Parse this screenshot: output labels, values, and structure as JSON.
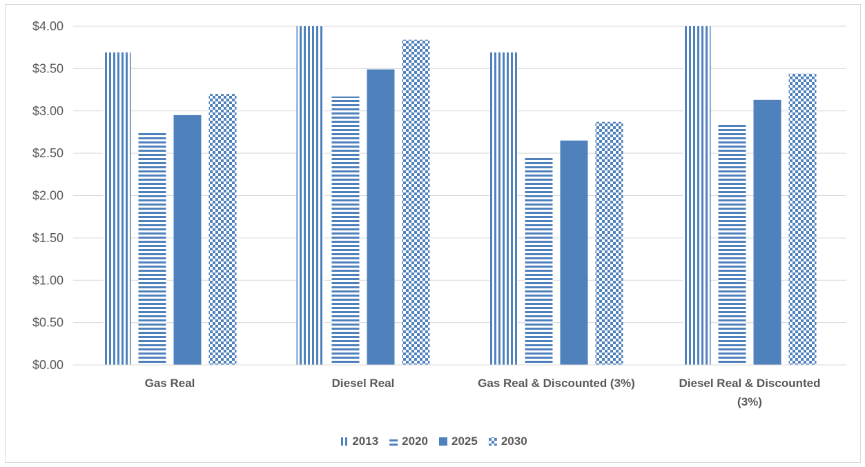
{
  "chart_data": {
    "type": "bar",
    "categories": [
      [
        "Gas Real"
      ],
      [
        "Diesel Real"
      ],
      [
        "Gas Real & Discounted (3%)"
      ],
      [
        "Diesel Real & Discounted",
        "(3%)"
      ]
    ],
    "series": [
      {
        "name": "2013",
        "values": [
          3.69,
          4.0,
          3.69,
          4.0
        ],
        "color": "#4f81bd",
        "pattern": "vertical-stripes"
      },
      {
        "name": "2020",
        "values": [
          2.74,
          3.17,
          2.46,
          2.85
        ],
        "color": "#4f81bd",
        "pattern": "horizontal-stripes"
      },
      {
        "name": "2025",
        "values": [
          2.95,
          3.49,
          2.65,
          3.13
        ],
        "color": "#4f81bd",
        "pattern": "solid"
      },
      {
        "name": "2030",
        "values": [
          3.2,
          3.84,
          2.87,
          3.44
        ],
        "color": "#4f81bd",
        "pattern": "checkerboard"
      }
    ],
    "title": "",
    "xlabel": "",
    "ylabel": "",
    "ylim": [
      0,
      4
    ],
    "yticks": [
      "$0.00",
      "$0.50",
      "$1.00",
      "$1.50",
      "$2.00",
      "$2.50",
      "$3.00",
      "$3.50",
      "$4.00"
    ],
    "grid": true,
    "legend_position": "bottom"
  }
}
